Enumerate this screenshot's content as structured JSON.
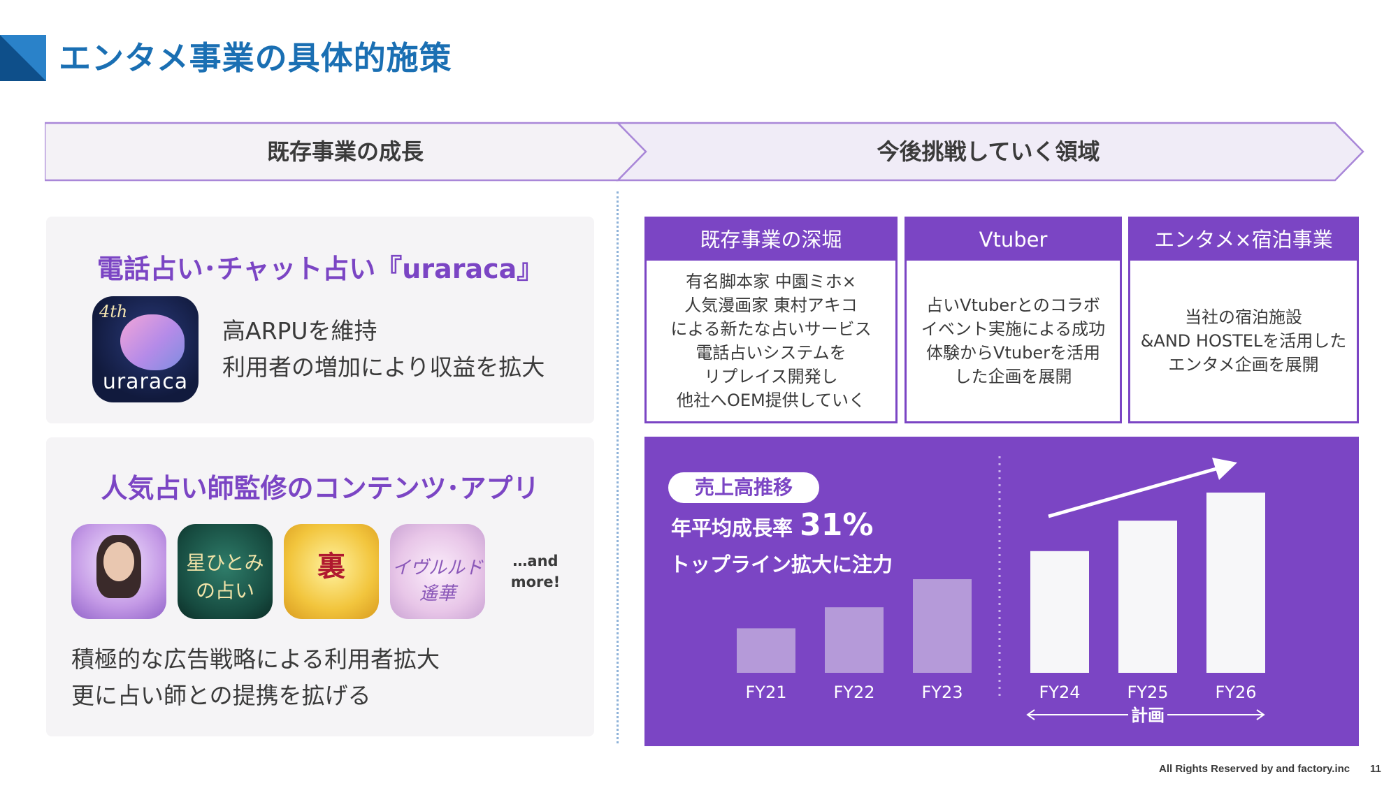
{
  "page": {
    "title": "エンタメ事業の具体的施策",
    "footer": "All Rights Reserved by and factory.inc",
    "page_number": "11"
  },
  "colors": {
    "title_blue": "#1a6fb3",
    "accent_purple": "#7b45c4",
    "phase_fill": "#f0ecf7"
  },
  "phases": {
    "left": "既存事業の成長",
    "right": "今後挑戦していく領域"
  },
  "urarca_card": {
    "title": "電話占い･チャット占い『uraraca』",
    "app_icon_badge": "4th",
    "app_icon_word": "uraraca",
    "line1": "高ARPUを維持",
    "line2": "利用者の増加により収益を拡大"
  },
  "apps_card": {
    "title": "人気占い師監修のコンテンツ･アプリ",
    "icons": [
      {
        "name": "fortune-teller-portrait-icon"
      },
      {
        "name": "hoshi-hitomi-app-icon",
        "text": "星ひとみの占い"
      },
      {
        "name": "suisho-gyokuko-app-icon",
        "text": "裏"
      },
      {
        "name": "iveruto-app-icon",
        "text": "イヴルルド遙華"
      }
    ],
    "more_line1": "…and",
    "more_line2": "more!",
    "line1": "積極的な広告戦略による利用者拡大",
    "line2": "更に占い師との提携を拡げる"
  },
  "boxes": [
    {
      "head": "既存事業の深堀",
      "body": "有名脚本家 中園ミホ×\n人気漫画家 東村アキコ\nによる新たな占いサービス\n電話占いシステムを\nリプレイス開発し\n他社へOEM提供していく"
    },
    {
      "head": "Vtuber",
      "body": "占いVtuberとのコラボ\nイベント実施による成功\n体験からVtuberを活用\nした企画を展開"
    },
    {
      "head": "エンタメ×宿泊事業",
      "body": "当社の宿泊施設\n&AND HOSTELを活用した\nエンタメ企画を展開"
    }
  ],
  "sales": {
    "pill": "売上高推移",
    "cagr_label": "年平均成長率",
    "cagr_value": "31%",
    "line2": "トップライン拡大に注力",
    "plan_label": "計画"
  },
  "chart_data": {
    "type": "bar",
    "title": "売上高推移",
    "categories": [
      "FY21",
      "FY22",
      "FY23",
      "FY24",
      "FY25",
      "FY26"
    ],
    "values": [
      19,
      28,
      40,
      52,
      65,
      77
    ],
    "ylim": [
      0,
      80
    ],
    "actual": [
      "FY21",
      "FY22",
      "FY23"
    ],
    "planned": [
      "FY24",
      "FY25",
      "FY26"
    ],
    "axis_labels_shown": false,
    "grid": false
  }
}
